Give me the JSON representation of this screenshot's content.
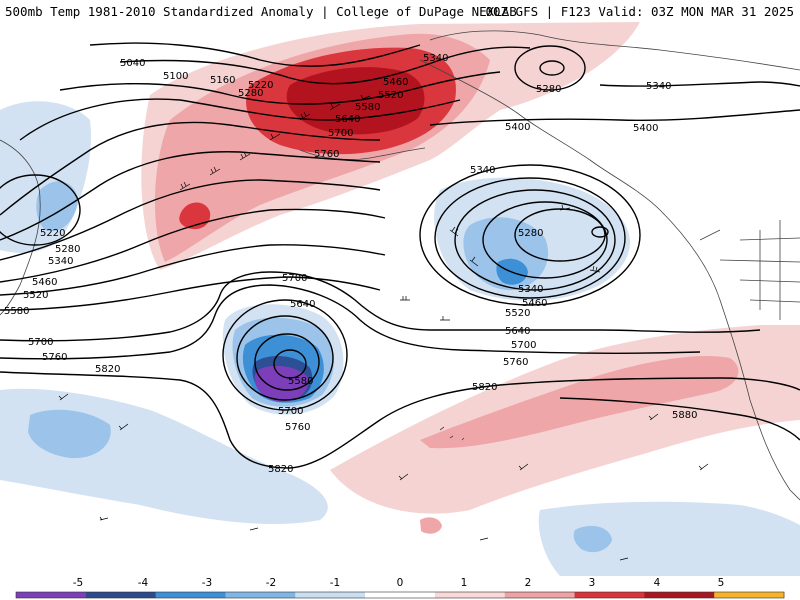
{
  "header": {
    "left_title": "500mb Temp 1981-2010 Standardized Anomaly | College of DuPage NEXLAB",
    "right_title": "00Z GFS | F123 Valid: 03Z MON MAR 31 2025"
  },
  "colorbar": {
    "ticks": [
      "-5",
      "-4",
      "-3",
      "-2",
      "-1",
      "0",
      "1",
      "2",
      "3",
      "4",
      "5"
    ],
    "colors": [
      "#7b3fb8",
      "#2c4a8c",
      "#3f8fd6",
      "#7fb6e6",
      "#c9def1",
      "#ffffff",
      "#f9d8d8",
      "#efa2a4",
      "#d9343c",
      "#a81621",
      "#f4b32a"
    ]
  },
  "contours": {
    "labels": [
      "5040",
      "5100",
      "5160",
      "5220",
      "5280",
      "5340",
      "5400",
      "5460",
      "5520",
      "5580",
      "5640",
      "5700",
      "5760",
      "5820",
      "5880"
    ]
  },
  "colors": {
    "positive_light": "#f6d3d3",
    "positive_medium": "#eea6a8",
    "positive_strong": "#d9363d",
    "positive_extreme": "#b2131e",
    "negative_light": "#d2e2f3",
    "negative_medium": "#9cc4ea",
    "negative_strong": "#3d8fd6",
    "negative_deep": "#2c4f95",
    "negative_extreme": "#7d3fb9"
  }
}
